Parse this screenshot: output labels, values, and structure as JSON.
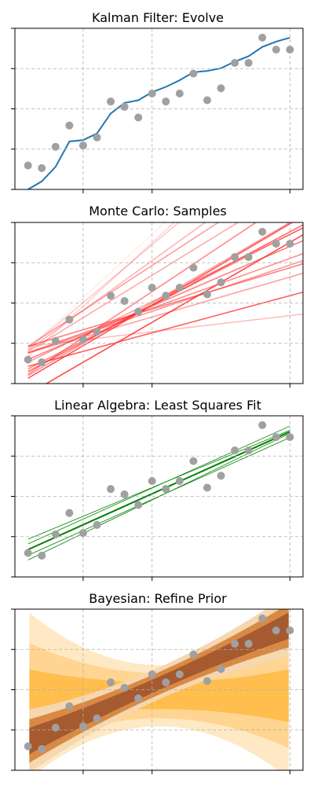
{
  "chart_data": [
    {
      "type": "line",
      "title": "Kalman Filter: Evolve",
      "xlabel": "",
      "ylabel": "",
      "xlim": [
        -0.05,
        1.05
      ],
      "ylim": [
        -0.06,
        1.15
      ],
      "grid": true,
      "points_color": "#a0a0a0",
      "line_color": "#1f77b4",
      "x": [
        0.0,
        0.0526,
        0.1053,
        0.1579,
        0.2105,
        0.2632,
        0.3158,
        0.3684,
        0.4211,
        0.4737,
        0.5263,
        0.5789,
        0.6316,
        0.6842,
        0.7368,
        0.7895,
        0.8421,
        0.8947,
        0.9474,
        1.0
      ],
      "y": [
        0.12,
        0.1,
        0.26,
        0.42,
        0.27,
        0.33,
        0.6,
        0.56,
        0.48,
        0.66,
        0.6,
        0.66,
        0.81,
        0.61,
        0.7,
        0.89,
        0.89,
        1.08,
        0.99,
        0.99
      ],
      "filter": [
        -0.06,
        0.0,
        0.11,
        0.3,
        0.31,
        0.36,
        0.51,
        0.59,
        0.61,
        0.67,
        0.71,
        0.76,
        0.82,
        0.83,
        0.85,
        0.9,
        0.94,
        1.01,
        1.05,
        1.08
      ]
    },
    {
      "type": "line",
      "title": "Monte Carlo: Samples",
      "xlabel": "",
      "ylabel": "",
      "xlim": [
        -0.05,
        1.05
      ],
      "ylim": [
        -0.06,
        1.15
      ],
      "grid": true,
      "points_color": "#a0a0a0",
      "line_color": "#ff2a2a",
      "x": [
        0.0,
        0.0526,
        0.1053,
        0.1579,
        0.2105,
        0.2632,
        0.3158,
        0.3684,
        0.4211,
        0.4737,
        0.5263,
        0.5789,
        0.6316,
        0.6842,
        0.7368,
        0.7895,
        0.8421,
        0.8947,
        0.9474,
        1.0
      ],
      "y": [
        0.12,
        0.1,
        0.26,
        0.42,
        0.27,
        0.33,
        0.6,
        0.56,
        0.48,
        0.66,
        0.6,
        0.66,
        0.81,
        0.61,
        0.7,
        0.89,
        0.89,
        1.08,
        0.99,
        0.99
      ],
      "samples": [
        {
          "a": 0.22,
          "b": 0.23,
          "alpha": 0.3
        },
        {
          "a": 0.17,
          "b": 0.57,
          "alpha": 0.45
        },
        {
          "a": 0.22,
          "b": 0.59,
          "alpha": 0.6
        },
        {
          "a": 0.17,
          "b": 0.71,
          "alpha": 0.55
        },
        {
          "a": 0.07,
          "b": 0.53,
          "alpha": 0.75
        },
        {
          "a": 0.17,
          "b": 0.66,
          "alpha": 0.5
        },
        {
          "a": 0.12,
          "b": 0.85,
          "alpha": 0.6
        },
        {
          "a": -0.14,
          "b": 1.14,
          "alpha": 0.85
        },
        {
          "a": 0.1,
          "b": 0.96,
          "alpha": 0.45
        },
        {
          "a": 0.05,
          "b": 1.01,
          "alpha": 0.55
        },
        {
          "a": 0.03,
          "b": 1.05,
          "alpha": 0.7
        },
        {
          "a": -0.02,
          "b": 1.16,
          "alpha": 0.8
        },
        {
          "a": 0.0,
          "b": 1.15,
          "alpha": 0.5
        },
        {
          "a": 0.01,
          "b": 1.31,
          "alpha": 0.55
        },
        {
          "a": 0.18,
          "b": 1.21,
          "alpha": 0.4
        },
        {
          "a": 0.19,
          "b": 1.42,
          "alpha": 0.35
        },
        {
          "a": 0.2,
          "b": 1.65,
          "alpha": 0.25
        },
        {
          "a": 0.14,
          "b": 1.81,
          "alpha": 0.2
        },
        {
          "a": 0.22,
          "b": 1.28,
          "alpha": 0.45
        },
        {
          "a": 0.2,
          "b": 1.82,
          "alpha": 0.08
        }
      ]
    },
    {
      "type": "line",
      "title": "Linear Algebra: Least Squares Fit",
      "xlabel": "",
      "ylabel": "",
      "xlim": [
        -0.05,
        1.05
      ],
      "ylim": [
        -0.06,
        1.15
      ],
      "grid": true,
      "points_color": "#a0a0a0",
      "line_color": "#008000",
      "x": [
        0.0,
        0.0526,
        0.1053,
        0.1579,
        0.2105,
        0.2632,
        0.3158,
        0.3684,
        0.4211,
        0.4737,
        0.5263,
        0.5789,
        0.6316,
        0.6842,
        0.7368,
        0.7895,
        0.8421,
        0.8947,
        0.9474,
        1.0
      ],
      "y": [
        0.12,
        0.1,
        0.26,
        0.42,
        0.27,
        0.33,
        0.6,
        0.56,
        0.48,
        0.66,
        0.6,
        0.66,
        0.81,
        0.61,
        0.7,
        0.89,
        0.89,
        1.08,
        0.99,
        0.99
      ],
      "fit": {
        "intercept": 0.145,
        "slope": 0.885,
        "band": 0.078
      }
    },
    {
      "type": "area",
      "title": "Bayesian: Refine Prior",
      "xlabel": "",
      "ylabel": "",
      "xlim": [
        -0.05,
        1.05
      ],
      "ylim": [
        -0.06,
        1.15
      ],
      "grid": true,
      "points_color": "#a0a0a0",
      "x": [
        0.0,
        0.0526,
        0.1053,
        0.1579,
        0.2105,
        0.2632,
        0.3158,
        0.3684,
        0.4211,
        0.4737,
        0.5263,
        0.5789,
        0.6316,
        0.6842,
        0.7368,
        0.7895,
        0.8421,
        0.8947,
        0.9474,
        1.0
      ],
      "y": [
        0.12,
        0.1,
        0.26,
        0.42,
        0.27,
        0.33,
        0.6,
        0.56,
        0.48,
        0.66,
        0.6,
        0.66,
        0.81,
        0.61,
        0.7,
        0.89,
        0.89,
        1.08,
        0.99,
        0.99
      ],
      "bands": [
        {
          "color": "#ffe9c4",
          "intercept": 0.5,
          "slope": 0.0,
          "half_center": 0.23,
          "half_edge": 0.63
        },
        {
          "color": "#ffd591",
          "intercept": 0.5,
          "slope": 0.0,
          "half_center": 0.17,
          "half_edge": 0.4
        },
        {
          "color": "#ffbe4d",
          "intercept": 0.5,
          "slope": 0.0,
          "half_center": 0.1,
          "half_edge": 0.2
        },
        {
          "color": "#f5d7b0",
          "intercept": 0.155,
          "slope": 0.875,
          "half_center": 0.12,
          "half_edge": 0.24
        },
        {
          "color": "#d88a45",
          "intercept": 0.155,
          "slope": 0.875,
          "half_center": 0.085,
          "half_edge": 0.165
        },
        {
          "color": "#a65a30",
          "intercept": 0.155,
          "slope": 0.875,
          "half_center": 0.05,
          "half_edge": 0.1
        }
      ]
    }
  ]
}
